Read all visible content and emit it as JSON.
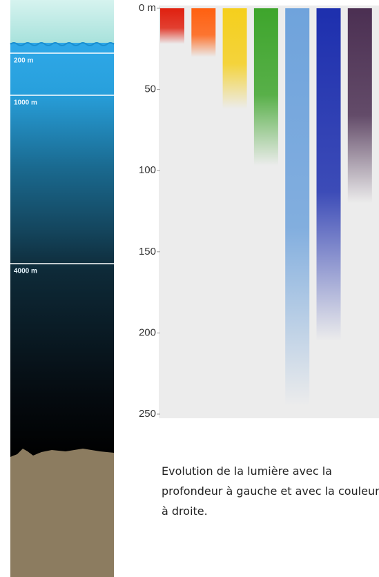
{
  "left_panel": {
    "labels": [
      "200 m",
      "1000 m",
      "4000 m"
    ]
  },
  "chart_data": {
    "type": "bar",
    "categories": [
      "rouge",
      "orange",
      "jaune",
      "vert",
      "bleu clair",
      "bleu",
      "violet"
    ],
    "values": [
      22,
      30,
      62,
      97,
      245,
      205,
      120
    ],
    "colors": [
      "#e0200f",
      "#ff6010",
      "#f5cf1c",
      "#3ea52c",
      "#6fa3dc",
      "#1d2fae",
      "#4b2f52"
    ],
    "ylim": [
      0,
      250
    ],
    "yticks": [
      {
        "value": 0,
        "label": "0 m"
      },
      50,
      100,
      150,
      200,
      250
    ]
  },
  "caption": "Evolution de la lumière avec la profondeur à gauche et avec la couleur à droite."
}
